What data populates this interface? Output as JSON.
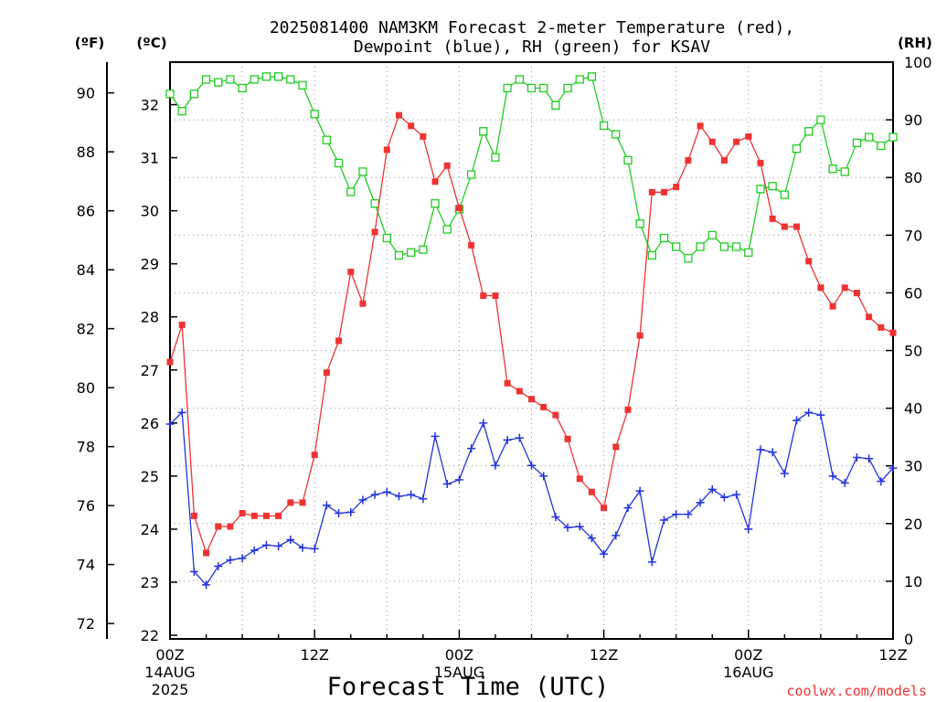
{
  "chart_data": {
    "type": "line",
    "title": "2025081400 NAM3KM Forecast 2-meter Temperature (red),",
    "subtitle": "Dewpoint (blue), RH (green) for KSAV",
    "xlabel": "Forecast Time (UTC)",
    "credit": "coolwx.com/models",
    "axis_units": {
      "fahrenheit": "(ºF)",
      "celsius": "(ºC)",
      "rh": "(RH)"
    },
    "x_hour_range": [
      0,
      60
    ],
    "x_ticks": [
      {
        "hour": 0,
        "label": "00Z",
        "date": "14AUG",
        "year": "2025"
      },
      {
        "hour": 12,
        "label": "12Z",
        "date": "",
        "year": ""
      },
      {
        "hour": 24,
        "label": "00Z",
        "date": "15AUG",
        "year": ""
      },
      {
        "hour": 36,
        "label": "12Z",
        "date": "",
        "year": ""
      },
      {
        "hour": 48,
        "label": "00Z",
        "date": "16AUG",
        "year": ""
      },
      {
        "hour": 60,
        "label": "12Z",
        "date": "",
        "year": ""
      }
    ],
    "celsius_range": [
      22,
      32.6
    ],
    "celsius_ticks": [
      "22",
      "23",
      "24",
      "25",
      "26",
      "27",
      "28",
      "29",
      "30",
      "31",
      "32"
    ],
    "fahrenheit_ticks": [
      "72",
      "74",
      "76",
      "78",
      "80",
      "82",
      "84",
      "86",
      "88",
      "90"
    ],
    "rh_range": [
      0,
      100
    ],
    "rh_ticks": [
      "0",
      "10",
      "20",
      "30",
      "40",
      "50",
      "60",
      "70",
      "80",
      "90",
      "100"
    ],
    "grid": true,
    "x_hours": [
      0,
      1,
      2,
      3,
      4,
      5,
      6,
      7,
      8,
      9,
      10,
      11,
      12,
      13,
      14,
      15,
      16,
      17,
      18,
      19,
      20,
      21,
      22,
      23,
      24,
      25,
      26,
      27,
      28,
      29,
      30,
      31,
      32,
      33,
      34,
      35,
      36,
      37,
      38,
      39,
      40,
      41,
      42,
      43,
      44,
      45,
      46,
      47,
      48,
      49,
      50,
      51,
      52,
      53,
      54,
      55,
      56,
      57,
      58,
      59,
      60
    ],
    "series": [
      {
        "name": "Temperature",
        "unit": "C",
        "color": "#ee3333",
        "marker": "filled-square",
        "values": [
          27.15,
          27.85,
          24.25,
          23.55,
          24.05,
          24.05,
          24.3,
          24.25,
          24.25,
          24.25,
          24.5,
          24.5,
          25.4,
          26.95,
          27.55,
          28.85,
          28.25,
          29.6,
          31.15,
          31.8,
          31.6,
          31.4,
          30.55,
          30.85,
          30.05,
          29.35,
          28.4,
          28.4,
          26.75,
          26.6,
          26.45,
          26.3,
          26.15,
          25.7,
          24.95,
          24.7,
          24.4,
          25.55,
          26.25,
          27.65,
          30.35,
          30.35,
          30.45,
          30.95,
          31.6,
          31.3,
          30.95,
          31.3,
          31.4,
          30.9,
          29.85,
          29.7,
          29.7,
          29.05,
          28.55,
          28.2,
          28.55,
          28.45,
          28.0,
          27.8,
          27.7
        ]
      },
      {
        "name": "Dewpoint",
        "unit": "C",
        "color": "#2233dd",
        "marker": "plus",
        "values": [
          25.98,
          26.2,
          23.2,
          22.95,
          23.3,
          23.42,
          23.45,
          23.6,
          23.7,
          23.68,
          23.8,
          23.65,
          23.63,
          24.45,
          24.3,
          24.32,
          24.55,
          24.65,
          24.7,
          24.62,
          24.65,
          24.57,
          25.75,
          24.85,
          24.93,
          25.52,
          26.0,
          25.2,
          25.68,
          25.72,
          25.2,
          25.0,
          24.23,
          24.03,
          24.05,
          23.83,
          23.53,
          23.88,
          24.4,
          24.72,
          23.38,
          24.17,
          24.28,
          24.28,
          24.5,
          24.75,
          24.6,
          24.65,
          24.0,
          25.5,
          25.45,
          25.05,
          26.05,
          26.2,
          26.15,
          25.0,
          24.87,
          25.35,
          25.33,
          24.9,
          25.15
        ]
      },
      {
        "name": "RH",
        "unit": "%",
        "color": "#22cc22",
        "marker": "open-square",
        "values": [
          94.5,
          91.5,
          94.5,
          97,
          96.5,
          97,
          95.5,
          97,
          97.5,
          97.5,
          97,
          96,
          91,
          86.5,
          82.5,
          77.5,
          81,
          75.5,
          69.5,
          66.5,
          67,
          67.5,
          75.5,
          71,
          74.5,
          80.5,
          88,
          83.5,
          95.5,
          97,
          95.5,
          95.5,
          92.5,
          95.5,
          97,
          97.5,
          89,
          87.5,
          83,
          72,
          66.5,
          69.5,
          68,
          66,
          68,
          70,
          68,
          68,
          67,
          78,
          78.5,
          77,
          85,
          88,
          90,
          81.5,
          81,
          86,
          87,
          85.5,
          87
        ]
      }
    ]
  }
}
